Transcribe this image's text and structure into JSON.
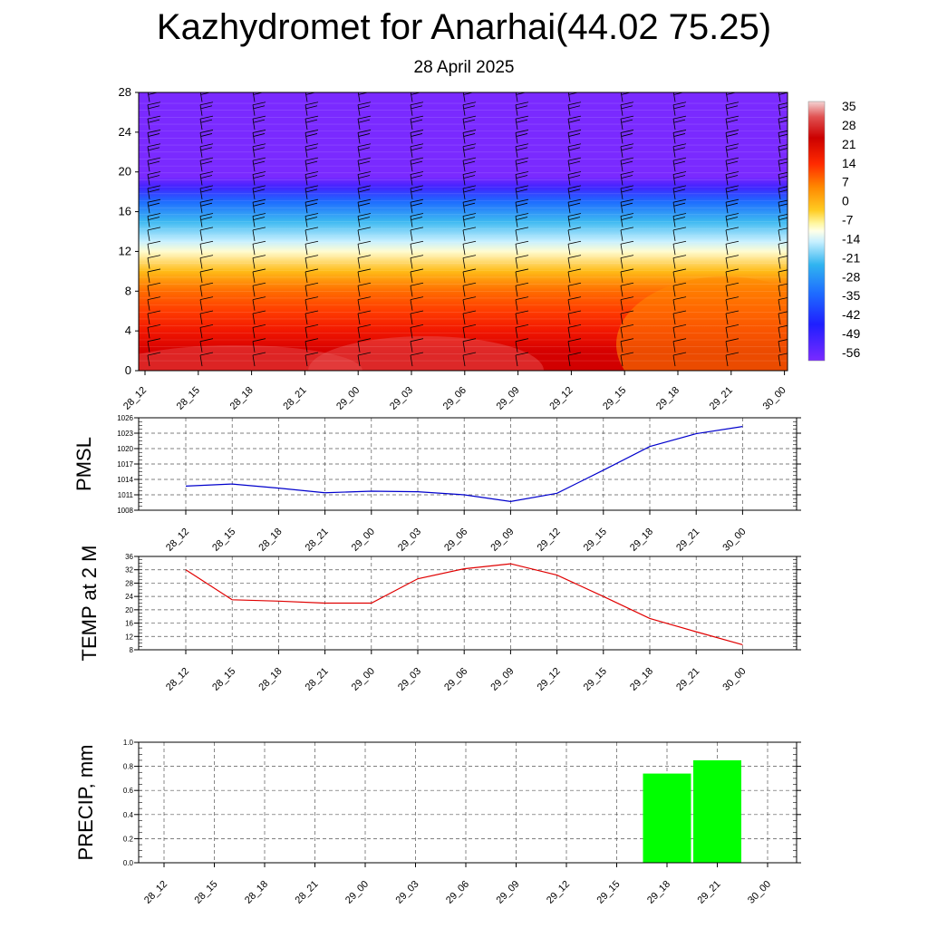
{
  "title": "Kazhydromet for Anarhai(44.02 75.25)",
  "subtitle": "28 April 2025",
  "colors": {
    "pmsl_line": "#0000cc",
    "temp_line": "#e00000",
    "precip_bar": "#00ff00",
    "grid": "#555555"
  },
  "chart_data": [
    {
      "type": "heatmap",
      "panel": "vertical cross-section (time-height)",
      "x": [
        "28_12",
        "28_15",
        "28_18",
        "28_21",
        "29_00",
        "29_03",
        "29_06",
        "29_09",
        "29_12",
        "29_15",
        "29_18",
        "29_21",
        "30_00"
      ],
      "yticks": [
        0,
        4,
        8,
        12,
        16,
        20,
        24,
        28
      ],
      "ylim": [
        0,
        28
      ],
      "colorbar_labels": [
        "35",
        "28",
        "21",
        "14",
        "7",
        "0",
        "-7",
        "-14",
        "-21",
        "-28",
        "-35",
        "-42",
        "-49",
        "-56"
      ],
      "colorbar_range": [
        -60,
        36
      ],
      "profile": [
        {
          "level": 0,
          "value": 30
        },
        {
          "level": 2,
          "value": 27
        },
        {
          "level": 4,
          "value": 22
        },
        {
          "level": 6,
          "value": 17
        },
        {
          "level": 8,
          "value": 12
        },
        {
          "level": 10,
          "value": 4
        },
        {
          "level": 12,
          "value": -10
        },
        {
          "level": 13,
          "value": -16
        },
        {
          "level": 15,
          "value": -27
        },
        {
          "level": 17,
          "value": -40
        },
        {
          "level": 18.5,
          "value": -53
        },
        {
          "level": 19.5,
          "value": -60
        },
        {
          "level": 28,
          "value": -60
        }
      ],
      "wind_barbs": "present at every time column"
    },
    {
      "type": "line",
      "ylabel": "PMSL",
      "x": [
        "28_12",
        "28_15",
        "28_18",
        "28_21",
        "29_00",
        "29_03",
        "29_06",
        "29_09",
        "29_12",
        "29_15",
        "29_18",
        "29_21",
        "30_00"
      ],
      "yticks": [
        1008,
        1011,
        1014,
        1017,
        1020,
        1023,
        1026
      ],
      "ylim": [
        1008,
        1026
      ],
      "values": [
        1012.7,
        1013.1,
        1012.3,
        1011.4,
        1011.7,
        1011.6,
        1011.0,
        1009.7,
        1011.3,
        1015.8,
        1020.4,
        1022.9,
        1024.3
      ]
    },
    {
      "type": "line",
      "ylabel": "TEMP at 2 M",
      "x": [
        "28_12",
        "28_15",
        "28_18",
        "28_21",
        "29_00",
        "29_03",
        "29_06",
        "29_09",
        "29_12",
        "29_15",
        "29_18",
        "29_21",
        "30_00"
      ],
      "yticks": [
        8,
        12,
        16,
        20,
        24,
        28,
        32,
        36
      ],
      "ylim": [
        8,
        36
      ],
      "values": [
        32.0,
        23.0,
        22.6,
        22.0,
        22.0,
        29.3,
        32.3,
        33.8,
        30.4,
        24.0,
        17.4,
        13.4,
        9.5
      ]
    },
    {
      "type": "bar",
      "ylabel": "PRECIP, mm",
      "x": [
        "28_12",
        "28_15",
        "28_18",
        "28_21",
        "29_00",
        "29_03",
        "29_06",
        "29_09",
        "29_12",
        "29_15",
        "29_18",
        "29_21",
        "30_00"
      ],
      "yticks": [
        "0.0",
        "0.2",
        "0.4",
        "0.6",
        "0.8",
        "1.0"
      ],
      "ylim": [
        0,
        1.0
      ],
      "values": [
        0,
        0,
        0,
        0,
        0,
        0,
        0,
        0,
        0,
        0,
        0.74,
        0.85,
        0
      ]
    }
  ]
}
